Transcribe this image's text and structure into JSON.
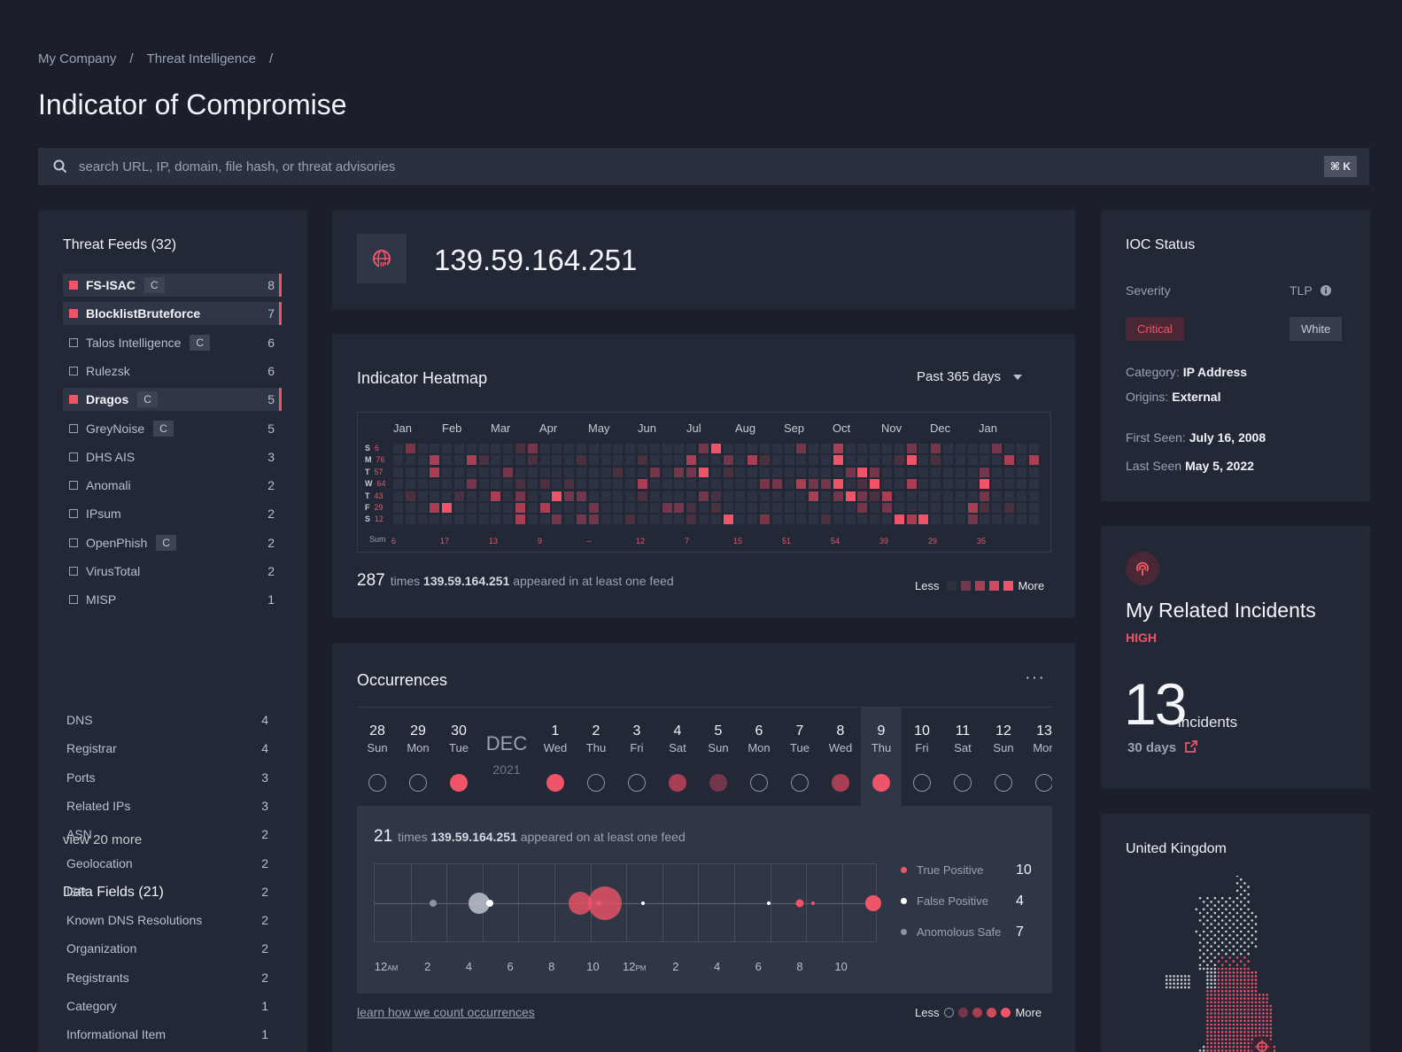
{
  "breadcrumb": [
    "My Company",
    "Threat Intelligence"
  ],
  "page_title": "Indicator of Compromise",
  "search": {
    "placeholder": "search URL, IP, domain, file hash, or threat advisories",
    "shortcut": "⌘ K"
  },
  "threat_feeds": {
    "title": "Threat Feeds (32)",
    "items": [
      {
        "name": "FS-ISAC",
        "tag": "C",
        "count": "8",
        "active": true
      },
      {
        "name": "BlocklistBruteforce",
        "tag": "",
        "count": "7",
        "active": true
      },
      {
        "name": "Talos Intelligence",
        "tag": "C",
        "count": "6",
        "active": false
      },
      {
        "name": "Rulezsk",
        "tag": "",
        "count": "6",
        "active": false
      },
      {
        "name": "Dragos",
        "tag": "C",
        "count": "5",
        "active": true
      },
      {
        "name": "GreyNoise",
        "tag": "C",
        "count": "5",
        "active": false
      },
      {
        "name": "DHS AIS",
        "tag": "",
        "count": "3",
        "active": false
      },
      {
        "name": "Anomali",
        "tag": "",
        "count": "2",
        "active": false
      },
      {
        "name": "IPsum",
        "tag": "",
        "count": "2",
        "active": false
      },
      {
        "name": "OpenPhish",
        "tag": "C",
        "count": "2",
        "active": false
      },
      {
        "name": "VirusTotal",
        "tag": "",
        "count": "2",
        "active": false
      },
      {
        "name": "MISP",
        "tag": "",
        "count": "1",
        "active": false
      }
    ],
    "view_more": "view 20 more"
  },
  "data_fields": {
    "title": "Data Fields (21)",
    "items": [
      {
        "name": "DNS",
        "count": "4"
      },
      {
        "name": "Registrar",
        "count": "4"
      },
      {
        "name": "Ports",
        "count": "3"
      },
      {
        "name": "Related IPs",
        "count": "3"
      },
      {
        "name": "ASN",
        "count": "2"
      },
      {
        "name": "Geolocation",
        "count": "2"
      },
      {
        "name": "ISP",
        "count": "2"
      },
      {
        "name": "Known DNS Resolutions",
        "count": "2"
      },
      {
        "name": "Organization",
        "count": "2"
      },
      {
        "name": "Registrants",
        "count": "2"
      },
      {
        "name": "Category",
        "count": "1"
      },
      {
        "name": "Informational Item",
        "count": "1"
      }
    ]
  },
  "ioc": {
    "value": "139.59.164.251",
    "icon": "globe-ip-icon"
  },
  "heatmap": {
    "title": "Indicator Heatmap",
    "range": "Past 365 days",
    "months": [
      "Jan",
      "Feb",
      "Mar",
      "Apr",
      "May",
      "Jun",
      "Jul",
      "Aug",
      "Sep",
      "Oct",
      "Nov",
      "Dec",
      "Jan"
    ],
    "day_labels": [
      {
        "d": "S",
        "n": "6"
      },
      {
        "d": "M",
        "n": "76"
      },
      {
        "d": "T",
        "n": "57"
      },
      {
        "d": "W",
        "n": "64"
      },
      {
        "d": "T",
        "n": "43"
      },
      {
        "d": "F",
        "n": "29"
      },
      {
        "d": "S",
        "n": "12"
      }
    ],
    "sum_label": "Sum",
    "month_sums": [
      "6",
      "17",
      "13",
      "9",
      "--",
      "12",
      "7",
      "15",
      "51",
      "54",
      "39",
      "29",
      "35"
    ],
    "footer": {
      "count": "287",
      "pre": "times",
      "ip": "139.59.164.251",
      "post": "appeared in at least one feed"
    },
    "legend_less": "Less",
    "legend_more": "More",
    "colors": [
      "#2c3241",
      "#4a3140",
      "#74364a",
      "#a93f55",
      "#ef5468"
    ]
  },
  "occurrences": {
    "title": "Occurrences",
    "menu": "···",
    "month": "DEC",
    "year": "2021",
    "days_before": [
      {
        "num": "28",
        "name": "Sun",
        "level": 0
      },
      {
        "num": "29",
        "name": "Mon",
        "level": 0
      },
      {
        "num": "30",
        "name": "Tue",
        "level": 4
      }
    ],
    "days_after": [
      {
        "num": "1",
        "name": "Wed",
        "level": 4
      },
      {
        "num": "2",
        "name": "Thu",
        "level": 0
      },
      {
        "num": "3",
        "name": "Fri",
        "level": 0
      },
      {
        "num": "4",
        "name": "Sat",
        "level": 3
      },
      {
        "num": "5",
        "name": "Sun",
        "level": 2
      },
      {
        "num": "6",
        "name": "Mon",
        "level": 0
      },
      {
        "num": "7",
        "name": "Tue",
        "level": 0
      },
      {
        "num": "8",
        "name": "Wed",
        "level": 3
      },
      {
        "num": "9",
        "name": "Thu",
        "level": 4,
        "selected": true
      },
      {
        "num": "10",
        "name": "Fri",
        "level": 0
      },
      {
        "num": "11",
        "name": "Sat",
        "level": 0
      },
      {
        "num": "12",
        "name": "Sun",
        "level": 0
      },
      {
        "num": "13",
        "name": "Mon",
        "level": 0
      }
    ],
    "detail": {
      "count": "21",
      "pre": "times",
      "ip": "139.59.164.251",
      "post": "appeared on at least one feed"
    },
    "time_ticks": [
      "12AM",
      "2",
      "4",
      "6",
      "8",
      "10",
      "12PM",
      "2",
      "4",
      "6",
      "8",
      "10"
    ],
    "series": [
      {
        "name": "True Positive",
        "value": "10",
        "color": "#ef5468"
      },
      {
        "name": "False Positive",
        "value": "4",
        "color": "#ffffff"
      },
      {
        "name": "Anomolous Safe",
        "value": "7",
        "color": "#8d93a1"
      }
    ],
    "bubbles": [
      {
        "hour": 2.8,
        "size": 8,
        "series": 2
      },
      {
        "hour": 5.0,
        "size": 24,
        "series": 2
      },
      {
        "hour": 5.5,
        "size": 8,
        "series": 1
      },
      {
        "hour": 9.8,
        "size": 26,
        "series": 0
      },
      {
        "hour": 11.0,
        "size": 38,
        "series": 0
      },
      {
        "hour": 10.7,
        "size": 6,
        "series": 0
      },
      {
        "hour": 12.8,
        "size": 4,
        "series": 1
      },
      {
        "hour": 18.8,
        "size": 4,
        "series": 1
      },
      {
        "hour": 20.3,
        "size": 9,
        "series": 0
      },
      {
        "hour": 20.9,
        "size": 4,
        "series": 0
      },
      {
        "hour": 23.8,
        "size": 18,
        "series": 0
      }
    ],
    "learn_link": "learn how we count occurrences",
    "legend_less": "Less",
    "legend_more": "More"
  },
  "ioc_status": {
    "title": "IOC Status",
    "severity_label": "Severity",
    "severity": "Critical",
    "tlp_label": "TLP",
    "tlp": "White",
    "category_label": "Category:",
    "category": "IP Address",
    "origins_label": "Origins:",
    "origins": "External",
    "first_seen_label": "First Seen:",
    "first_seen": "July 16, 2008",
    "last_seen_label": "Last Seen",
    "last_seen": "May 5, 2022"
  },
  "incidents": {
    "title": "My Related Incidents",
    "level": "HIGH",
    "count": "13",
    "unit": "incidents",
    "period": "30 days",
    "icon": "broadcast-icon"
  },
  "map": {
    "title": "United Kingdom",
    "icon": "uk-dot-map"
  }
}
